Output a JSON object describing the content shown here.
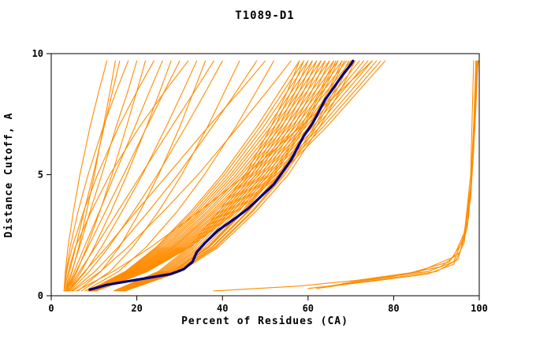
{
  "chart_data": {
    "type": "line",
    "title": "T1089-D1",
    "xlabel": "Percent of Residues (CA)",
    "ylabel": "Distance Cutoff, A",
    "xlim": [
      0,
      100
    ],
    "ylim": [
      0,
      10
    ],
    "x_ticks": [
      0,
      20,
      40,
      60,
      80,
      100
    ],
    "y_ticks": [
      0,
      5,
      10
    ],
    "grid": false,
    "legend": null,
    "model_color": "#ff8c00",
    "highlight_color": "#000080",
    "axis_color": "#000000",
    "cutoff_levels": [
      0.2,
      1,
      2,
      3.5,
      5,
      7,
      8.5,
      9.7
    ],
    "model_series_percent": [
      [
        3,
        3.3,
        3.9,
        5.2,
        6.7,
        9.1,
        11.2,
        13
      ],
      [
        3.3,
        4.3,
        5.7,
        7.7,
        9.8,
        12.4,
        14.4,
        16
      ],
      [
        3,
        3.5,
        4.4,
        6.3,
        8.6,
        12.2,
        15.3,
        18
      ],
      [
        3.3,
        4.8,
        6.6,
        9.1,
        11.8,
        15.2,
        18,
        20
      ],
      [
        3.8,
        6,
        8.3,
        11.4,
        14.2,
        17.6,
        20.1,
        22
      ],
      [
        3,
        3.6,
        4.9,
        7.6,
        10.8,
        15.8,
        20.2,
        24
      ],
      [
        3.5,
        5.4,
        7.7,
        11.3,
        14.8,
        19.6,
        23.1,
        26
      ],
      [
        4,
        7,
        10,
        14,
        17.7,
        22.3,
        25.5,
        28
      ],
      [
        3.5,
        5.8,
        8.6,
        12.7,
        16.9,
        22.4,
        26.6,
        30
      ],
      [
        3,
        4,
        5.6,
        9.4,
        13.7,
        20.7,
        26.8,
        32
      ],
      [
        3.5,
        4.9,
        6.4,
        8.3,
        10.1,
        12.2,
        13.8,
        15
      ],
      [
        4.2,
        8,
        11.7,
        16.6,
        21.3,
        26.9,
        30.9,
        34
      ],
      [
        6.3,
        11.6,
        15.9,
        20.8,
        25.1,
        30.1,
        33.4,
        36
      ],
      [
        4.5,
        8.9,
        13.4,
        19.3,
        24.8,
        31.5,
        36.3,
        40
      ],
      [
        7.1,
        13.7,
        19,
        25.1,
        30.5,
        36.6,
        40.7,
        44
      ],
      [
        4.8,
        10.2,
        15.6,
        22.8,
        29.6,
        37.7,
        43.5,
        48
      ],
      [
        7.9,
        15.7,
        22.1,
        29.5,
        35.8,
        43.2,
        48.1,
        52
      ],
      [
        5.1,
        11.5,
        17.8,
        26.3,
        34.3,
        43.8,
        50.7,
        56
      ],
      [
        3.7,
        6.6,
        10.3,
        15.6,
        21,
        28.2,
        33.7,
        38
      ],
      [
        3.9,
        7.8,
        12.9,
        19.9,
        27.2,
        36.8,
        44.3,
        50
      ],
      [
        14.6,
        25,
        32.2,
        39.3,
        45.4,
        51.4,
        55.3,
        58
      ],
      [
        14.8,
        25.4,
        32.7,
        40,
        46.1,
        52.3,
        56.2,
        59
      ],
      [
        15,
        25.8,
        33.2,
        40.6,
        46.9,
        53.2,
        57.2,
        60
      ],
      [
        15.2,
        26.2,
        33.7,
        41.3,
        47.7,
        54,
        58.1,
        61
      ],
      [
        15.4,
        26.6,
        34.3,
        41.9,
        48.4,
        54.9,
        59.1,
        62
      ],
      [
        15.6,
        27,
        34.8,
        42.6,
        49.2,
        55.8,
        60,
        63
      ],
      [
        15.8,
        27.4,
        35.3,
        43.3,
        50,
        56.7,
        61,
        64
      ],
      [
        16,
        27.8,
        35.9,
        43.9,
        50.7,
        57.6,
        61.9,
        65
      ],
      [
        16.2,
        28.2,
        36.4,
        44.6,
        51.5,
        58.4,
        62.9,
        66
      ],
      [
        16.4,
        28.6,
        36.9,
        45.2,
        52.3,
        59.3,
        63.8,
        67
      ],
      [
        16.7,
        29,
        37.5,
        45.9,
        53.1,
        60.2,
        64.8,
        68
      ],
      [
        17.1,
        29.8,
        38.5,
        47.2,
        54.6,
        62,
        66.7,
        70
      ],
      [
        16.3,
        28.4,
        36.7,
        44.9,
        51.9,
        58.9,
        63.3,
        66.5
      ],
      [
        16.8,
        29.2,
        37.7,
        46.2,
        53.4,
        60.6,
        65.2,
        68.5
      ],
      [
        17,
        29.6,
        38.2,
        46.9,
        54.2,
        61.5,
        66.2,
        69.5
      ],
      [
        17.3,
        30.2,
        39,
        47.9,
        55.4,
        62.8,
        67.6,
        71
      ],
      [
        8.5,
        17.3,
        24.5,
        32.7,
        39.9,
        48.1,
        53.6,
        58
      ],
      [
        8.6,
        17.6,
        24.8,
        33.2,
        40.5,
        48.9,
        54.5,
        59
      ],
      [
        8.7,
        17.8,
        25.2,
        33.8,
        41.2,
        49.7,
        55.4,
        60
      ],
      [
        8.8,
        18.1,
        25.6,
        34.3,
        41.9,
        50.6,
        56.4,
        61
      ],
      [
        8.9,
        18.3,
        26,
        34.9,
        42.5,
        51.4,
        57.3,
        62
      ],
      [
        9,
        18.6,
        26.4,
        35.4,
        43.2,
        52.2,
        58.2,
        63
      ],
      [
        9.1,
        18.9,
        26.8,
        35.9,
        43.9,
        53,
        59.1,
        64
      ],
      [
        9.2,
        19.1,
        27.2,
        36.5,
        44.5,
        53.8,
        60,
        65
      ],
      [
        9.3,
        19.4,
        27.6,
        37,
        45.2,
        54.7,
        61,
        66
      ],
      [
        9.4,
        19.6,
        28,
        37.6,
        45.9,
        55.5,
        61.9,
        67
      ],
      [
        9.5,
        19.9,
        28.4,
        38.1,
        46.6,
        56.3,
        62.8,
        68
      ],
      [
        9.6,
        20.2,
        28.7,
        38.6,
        47.2,
        57.1,
        63.7,
        69
      ],
      [
        9.7,
        20.4,
        29.1,
        39.2,
        47.9,
        57.9,
        64.6,
        70
      ],
      [
        9.8,
        20.7,
        29.5,
        39.7,
        48.6,
        58.8,
        65.6,
        71
      ],
      [
        9.9,
        20.9,
        29.9,
        40.3,
        49.2,
        59.6,
        66.5,
        72
      ],
      [
        10,
        21.2,
        30.3,
        40.8,
        49.9,
        60.4,
        67.4,
        73
      ],
      [
        10.1,
        21.5,
        30.7,
        41.3,
        50.6,
        61.2,
        68.3,
        74
      ],
      [
        10.2,
        21.7,
        31.1,
        41.9,
        51.2,
        62,
        69.2,
        75
      ],
      [
        10.3,
        22,
        31.5,
        42.4,
        51.9,
        62.9,
        70.2,
        76
      ],
      [
        10.4,
        22.2,
        31.9,
        43,
        52.6,
        63.7,
        71.1,
        77
      ],
      [
        10.5,
        22.5,
        32.3,
        43.5,
        53.3,
        64.5,
        72,
        78
      ],
      [
        5.9,
        14.5,
        23.2,
        34.7,
        45.5,
        58.4,
        67.8,
        75
      ]
    ],
    "right_cluster_series": [
      [
        [
          38,
          0.2
        ],
        [
          58,
          0.4
        ],
        [
          75,
          0.7
        ],
        [
          88,
          1
        ],
        [
          94,
          1.4
        ],
        [
          96.5,
          2.5
        ],
        [
          98,
          5
        ],
        [
          98.7,
          9.7
        ]
      ],
      [
        [
          60,
          0.3
        ],
        [
          75,
          0.6
        ],
        [
          88,
          0.9
        ],
        [
          94,
          1.3
        ],
        [
          96.5,
          2.2
        ],
        [
          98,
          4.5
        ],
        [
          98.8,
          7.5
        ],
        [
          99.2,
          9.7
        ]
      ],
      [
        [
          62,
          0.3
        ],
        [
          78,
          0.7
        ],
        [
          90,
          1
        ],
        [
          95,
          1.5
        ],
        [
          97.2,
          2.8
        ],
        [
          98.5,
          5.5
        ],
        [
          99,
          8
        ],
        [
          99.4,
          9.7
        ]
      ],
      [
        [
          65,
          0.4
        ],
        [
          80,
          0.8
        ],
        [
          91,
          1.2
        ],
        [
          95.5,
          1.8
        ],
        [
          97.5,
          3.2
        ],
        [
          98.7,
          6
        ],
        [
          99.2,
          8.5
        ],
        [
          99.5,
          9.7
        ]
      ],
      [
        [
          68,
          0.5
        ],
        [
          83,
          0.9
        ],
        [
          93,
          1.4
        ],
        [
          96,
          2.2
        ],
        [
          98,
          4
        ],
        [
          99,
          7
        ],
        [
          99.5,
          9
        ],
        [
          99.7,
          9.7
        ]
      ],
      [
        [
          70,
          0.6
        ],
        [
          86,
          1
        ],
        [
          94,
          1.6
        ],
        [
          96.5,
          2.6
        ],
        [
          98.2,
          4.8
        ],
        [
          99.2,
          7.8
        ],
        [
          99.6,
          9.4
        ],
        [
          99.8,
          9.7
        ]
      ]
    ],
    "highlighted_series": [
      [
        9,
        0.25
      ],
      [
        13,
        0.45
      ],
      [
        18,
        0.6
      ],
      [
        23,
        0.75
      ],
      [
        28,
        0.9
      ],
      [
        31,
        1.1
      ],
      [
        33,
        1.4
      ],
      [
        34,
        1.8
      ],
      [
        36,
        2.2
      ],
      [
        39,
        2.7
      ],
      [
        43,
        3.2
      ],
      [
        46,
        3.6
      ],
      [
        49,
        4.1
      ],
      [
        52,
        4.6
      ],
      [
        54,
        5.1
      ],
      [
        56,
        5.6
      ],
      [
        57.5,
        6.1
      ],
      [
        59,
        6.6
      ],
      [
        61,
        7.1
      ],
      [
        62.5,
        7.6
      ],
      [
        64,
        8.1
      ],
      [
        66,
        8.6
      ],
      [
        68,
        9.1
      ],
      [
        70,
        9.55
      ],
      [
        70.5,
        9.7
      ]
    ]
  }
}
